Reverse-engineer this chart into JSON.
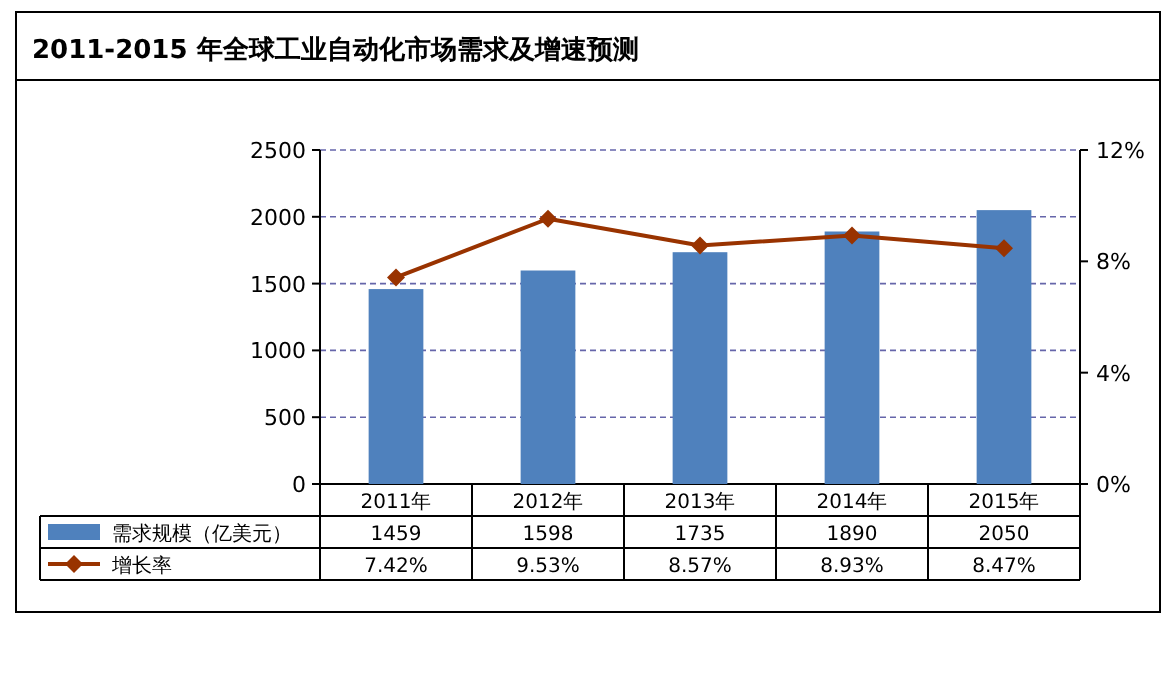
{
  "chart_data": {
    "type": "bar",
    "title": "2011-2015 年全球工业自动化市场需求及增速预测",
    "categories": [
      "2011年",
      "2012年",
      "2013年",
      "2014年",
      "2015年"
    ],
    "series": [
      {
        "name": "需求规模（亿美元）",
        "color": "#4f81bd",
        "values": [
          1459,
          1598,
          1735,
          1890,
          2050
        ],
        "value_labels": [
          "1459",
          "1598",
          "1735",
          "1890",
          "2050"
        ]
      },
      {
        "name": "增长率",
        "type": "line",
        "axis": "y2",
        "color": "#993300",
        "marker": "diamond",
        "values": [
          7.42,
          9.53,
          8.57,
          8.93,
          8.47
        ],
        "value_labels": [
          "7.42%",
          "9.53%",
          "8.57%",
          "8.93%",
          "8.47%"
        ]
      }
    ],
    "ylim": [
      0,
      2500
    ],
    "yticks": [
      0,
      500,
      1000,
      1500,
      2000,
      2500
    ],
    "y2lim": [
      0,
      12
    ],
    "y2ticks": [
      {
        "value": 0,
        "label": "0%"
      },
      {
        "value": 4,
        "label": "4%"
      },
      {
        "value": 8,
        "label": "8%"
      },
      {
        "value": 12,
        "label": "12%"
      }
    ],
    "grid": "y",
    "legend": "bottom"
  }
}
